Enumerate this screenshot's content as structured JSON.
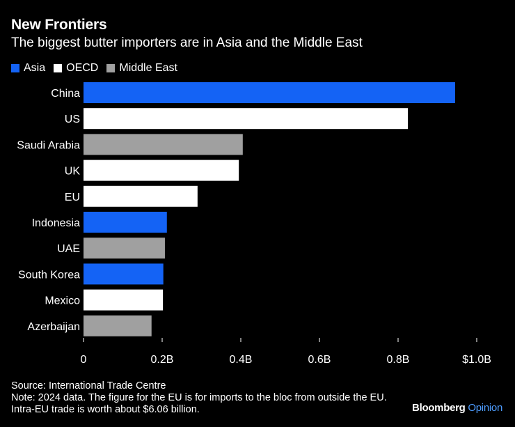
{
  "title": "New Frontiers",
  "subtitle": "The biggest butter importers are in Asia and the Middle East",
  "legend": [
    {
      "label": "Asia",
      "color": "#1463f5"
    },
    {
      "label": "OECD",
      "color": "#ffffff"
    },
    {
      "label": "Middle East",
      "color": "#a0a0a0"
    }
  ],
  "chart_data": {
    "type": "bar",
    "orientation": "horizontal",
    "categories": [
      "China",
      "US",
      "Saudi Arabia",
      "UK",
      "EU",
      "Indonesia",
      "UAE",
      "South Korea",
      "Mexico",
      "Azerbaijan"
    ],
    "values": [
      0.945,
      0.825,
      0.405,
      0.395,
      0.29,
      0.212,
      0.207,
      0.203,
      0.202,
      0.173
    ],
    "groups": [
      "Asia",
      "OECD",
      "Middle East",
      "OECD",
      "OECD",
      "Asia",
      "Middle East",
      "Asia",
      "OECD",
      "Middle East"
    ],
    "xlim": [
      0,
      1.0
    ],
    "xticks": [
      0,
      0.2,
      0.4,
      0.6,
      0.8,
      1.0
    ],
    "xtick_labels": [
      "0",
      "0.2B",
      "0.4B",
      "0.6B",
      "0.8B",
      "$1.0B"
    ],
    "unit": "USD billions"
  },
  "source": "Source: International Trade Centre",
  "note": "Note: 2024 data. The figure for the EU is for imports to the bloc from outside the EU. Intra-EU trade is worth about $6.06 billion.",
  "brand": {
    "name": "Bloomberg",
    "suffix": "Opinion"
  }
}
